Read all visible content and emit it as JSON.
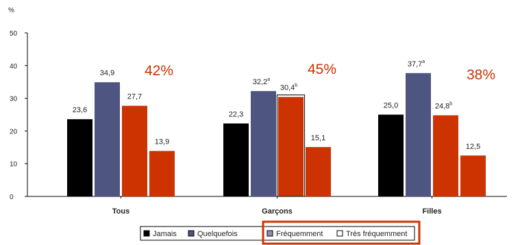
{
  "chart_data": {
    "type": "bar",
    "title": "",
    "xlabel": "",
    "ylabel": "%",
    "ylim": [
      0,
      50
    ],
    "yticks": [
      "0",
      "10",
      "20",
      "30",
      "40",
      "50"
    ],
    "grid": false,
    "legend_position": "bottom",
    "categories": [
      "Tous",
      "Garçons",
      "Filles"
    ],
    "series": [
      {
        "name": "Jamais",
        "color": "#000000",
        "values": [
          23.6,
          22.3,
          25.0
        ],
        "labels": [
          "23,6",
          "22,3",
          "25,0"
        ],
        "sup": [
          "",
          "",
          ""
        ]
      },
      {
        "name": "Quelquefois",
        "color": "#4d5580",
        "values": [
          34.9,
          32.2,
          37.7
        ],
        "labels": [
          "34,9",
          "32,2",
          "37,7"
        ],
        "sup": [
          "",
          "a",
          "a"
        ]
      },
      {
        "name": "Fréquemment",
        "color": "#cc3300",
        "values": [
          27.7,
          30.4,
          24.8
        ],
        "labels": [
          "27,7",
          "30,4",
          "24,8"
        ],
        "sup": [
          "",
          "b",
          "b"
        ]
      },
      {
        "name": "Très fréquemment",
        "color": "#cc3300",
        "values": [
          13.9,
          15.1,
          12.5
        ],
        "labels": [
          "13,9",
          "15,1",
          "12,5"
        ],
        "sup": [
          "",
          "",
          ""
        ]
      }
    ],
    "annotations": [
      "42%",
      "45%",
      "38%"
    ],
    "legend_highlight_color": "#cc3300"
  }
}
